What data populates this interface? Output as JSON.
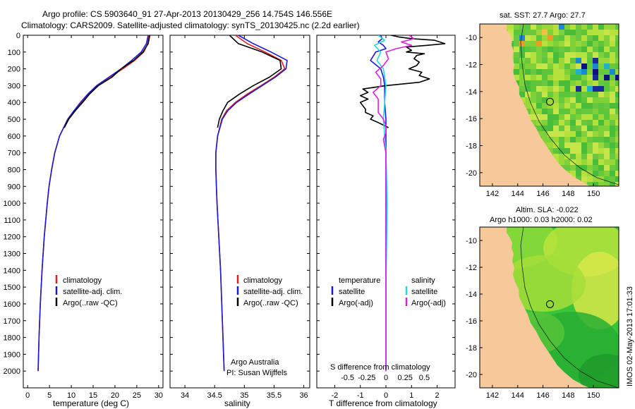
{
  "header": {
    "line1": "Argo profile: CS 5903640_91 27-Apr-2013 20130429_256 14.754S 146.556E",
    "line2": "Climatology: CARS2009. Satellite-adjusted climatology: synTS_20130425.nc (2.2d earlier)"
  },
  "colors": {
    "climatology": "#e02020",
    "satellite": "#1a1ad6",
    "argo": "#000000",
    "satellite_sal": "#22d8e8",
    "argo_sal": "#e020e0",
    "land": "#f6c89a",
    "sea": "#39c43a"
  },
  "chart_data": [
    {
      "type": "line",
      "panel": "temperature",
      "xlabel": "temperature (deg C)",
      "ylabel": "",
      "xlim": [
        -1,
        31
      ],
      "ylim": [
        2100,
        0
      ],
      "xticks": [
        0,
        5,
        10,
        15,
        20,
        25,
        30
      ],
      "yticks": [
        0,
        100,
        200,
        300,
        400,
        500,
        600,
        700,
        800,
        900,
        1000,
        1100,
        1200,
        1300,
        1400,
        1500,
        1600,
        1700,
        1800,
        1900,
        2000
      ],
      "legend": [
        "climatology",
        "satellite-adj. clim.",
        "Argo(..raw -QC)"
      ],
      "series": [
        {
          "name": "climatology",
          "color": "#e02020",
          "depth": [
            0,
            50,
            100,
            150,
            200,
            250,
            300,
            350,
            400,
            450,
            500,
            600,
            700,
            800,
            900,
            1000,
            1200,
            1400,
            1600,
            1800,
            2000
          ],
          "values": [
            27.8,
            27.5,
            26.6,
            24.5,
            21.8,
            18.8,
            16.0,
            14.0,
            12.3,
            10.7,
            9.2,
            7.3,
            6.2,
            5.5,
            4.9,
            4.5,
            3.8,
            3.3,
            2.9,
            2.6,
            2.4
          ]
        },
        {
          "name": "satellite-adj. clim.",
          "color": "#1a1ad6",
          "depth": [
            0,
            50,
            100,
            150,
            200,
            250,
            300,
            350,
            400,
            450,
            500,
            600,
            700,
            800,
            900,
            1000,
            1200,
            1400,
            1600,
            1800,
            2000
          ],
          "values": [
            27.6,
            27.2,
            26.0,
            23.8,
            21.4,
            18.6,
            15.8,
            13.8,
            12.1,
            10.6,
            9.2,
            7.3,
            6.2,
            5.5,
            4.9,
            4.5,
            3.8,
            3.3,
            2.9,
            2.6,
            2.4
          ]
        },
        {
          "name": "Argo(..raw -QC)",
          "color": "#000000",
          "depth": [
            0,
            50,
            100,
            150,
            200,
            250,
            300,
            350,
            400,
            450,
            500,
            550
          ],
          "values": [
            28.0,
            27.6,
            26.4,
            24.3,
            21.4,
            19.3,
            16.2,
            14.2,
            12.6,
            10.9,
            9.4,
            8.4
          ]
        }
      ]
    },
    {
      "type": "line",
      "panel": "salinity",
      "xlabel": "salinity",
      "ylabel": "",
      "xlim": [
        33.75,
        36.1
      ],
      "ylim": [
        2100,
        0
      ],
      "xticks": [
        34,
        34.5,
        35,
        35.5,
        36
      ],
      "legend": [
        "climatology",
        "satellite-adj. clim.",
        "Argo(..raw -QC)"
      ],
      "annotations": [
        "Argo Australia",
        "PI: Susan Wijffels"
      ],
      "series": [
        {
          "name": "climatology",
          "color": "#e02020",
          "depth": [
            0,
            50,
            100,
            150,
            200,
            250,
            300,
            350,
            400,
            450,
            500,
            600,
            700,
            800,
            900,
            1000,
            1200,
            1400,
            1600,
            1800,
            2000
          ],
          "values": [
            34.85,
            35.05,
            35.35,
            35.62,
            35.68,
            35.5,
            35.28,
            35.05,
            34.85,
            34.7,
            34.62,
            34.55,
            34.52,
            34.52,
            34.53,
            34.54,
            34.57,
            34.6,
            34.62,
            34.64,
            34.66
          ]
        },
        {
          "name": "satellite-adj. clim.",
          "color": "#1a1ad6",
          "depth": [
            0,
            50,
            100,
            150,
            200,
            250,
            300,
            350,
            400,
            450,
            500,
            600,
            700,
            800,
            900,
            1000,
            1200,
            1400,
            1600,
            1800,
            2000
          ],
          "values": [
            34.9,
            35.15,
            35.45,
            35.72,
            35.7,
            35.52,
            35.3,
            35.08,
            34.87,
            34.72,
            34.63,
            34.55,
            34.52,
            34.52,
            34.53,
            34.54,
            34.57,
            34.6,
            34.62,
            34.64,
            34.66
          ]
        },
        {
          "name": "Argo(..raw -QC)",
          "color": "#000000",
          "depth": [
            0,
            50,
            100,
            150,
            200,
            250,
            300,
            350,
            400,
            450,
            500,
            550
          ],
          "values": [
            34.75,
            34.9,
            35.3,
            35.6,
            35.62,
            35.42,
            35.15,
            34.92,
            34.72,
            34.64,
            34.58,
            34.55
          ]
        }
      ]
    },
    {
      "type": "line",
      "panel": "difference",
      "xlabel": "T difference from climatology",
      "x2label": "S difference from climatology",
      "xlim": [
        -2.7,
        2.7
      ],
      "ylim": [
        2100,
        0
      ],
      "xticks": [
        -2,
        -1,
        0,
        1,
        2
      ],
      "x2ticks": [
        "-0.5",
        "-0.25",
        "0",
        "0.25",
        "0.5"
      ],
      "legend_titles": [
        "temperature",
        "salinity"
      ],
      "legend": [
        "satellite",
        "Argo(-adj)",
        "satellite",
        "Argo(-adj)"
      ],
      "series": [
        {
          "name": "satellite",
          "color": "#1a1ad6",
          "depth": [
            0,
            20,
            40,
            60,
            80,
            100,
            150,
            200,
            250,
            300,
            400,
            500,
            700,
            1000,
            1500,
            2000
          ],
          "values": [
            -0.2,
            -0.15,
            -0.3,
            -0.1,
            0.0,
            -0.4,
            -0.6,
            -0.2,
            -0.1,
            -0.05,
            -0.05,
            0.0,
            0.0,
            0.0,
            0.0,
            0.0
          ]
        },
        {
          "name": "Argo(-adj)",
          "color": "#000000",
          "depth": [
            0,
            10,
            20,
            30,
            50,
            60,
            70,
            90,
            100,
            110,
            120,
            140,
            160,
            180,
            200,
            220,
            240,
            260,
            280,
            300,
            320,
            340,
            360,
            380,
            400,
            420,
            440,
            460,
            480,
            500,
            520,
            550
          ],
          "values": [
            0.2,
            0.5,
            1.0,
            1.9,
            2.3,
            1.6,
            0.8,
            1.0,
            0.8,
            1.5,
            1.2,
            1.1,
            1.3,
            1.2,
            0.9,
            1.4,
            1.3,
            1.7,
            1.3,
            0.0,
            -0.9,
            -0.7,
            -1.0,
            -0.7,
            -1.0,
            -0.9,
            -0.8,
            -0.8,
            -0.5,
            -0.6,
            -0.3,
            0.1
          ]
        },
        {
          "name": "satellite",
          "color": "#22d8e8",
          "depth": [
            0,
            30,
            60,
            100,
            150,
            200,
            300,
            500,
            700,
            1000,
            1500,
            2000
          ],
          "values": [
            -0.3,
            -0.05,
            -0.45,
            -0.2,
            -0.35,
            -0.1,
            0.0,
            -0.1,
            0.0,
            0.05,
            0.0,
            0.0
          ]
        },
        {
          "name": "Argo(-adj)",
          "color": "#e020e0",
          "depth": [
            0,
            20,
            40,
            60,
            80,
            100,
            140,
            180,
            220,
            260,
            300,
            340,
            380,
            420,
            460,
            500,
            540,
            580,
            620,
            700,
            800,
            1000,
            1500,
            2000
          ],
          "values": [
            0.9,
            1.1,
            0.6,
            1.0,
            0.4,
            0.0,
            0.1,
            -0.1,
            -0.4,
            -0.2,
            -0.2,
            -0.5,
            -0.3,
            -0.3,
            -0.3,
            -0.1,
            0.0,
            0.0,
            -0.1,
            0.0,
            0.0,
            0.0,
            0.0,
            0.0
          ]
        }
      ]
    },
    {
      "type": "heatmap",
      "panel": "sst-map",
      "title": "sat. SST: 27.7 Argo: 27.7",
      "xticks": [
        142,
        144,
        146,
        148,
        150
      ],
      "yticks": [
        -10,
        -12,
        -14,
        -16,
        -18,
        -20
      ],
      "xlim": [
        141,
        152
      ],
      "ylim": [
        -21,
        -9
      ],
      "marker": {
        "lon": 146.556,
        "lat": -14.754
      }
    },
    {
      "type": "heatmap",
      "panel": "sla-map",
      "title": "Altim. SLA: -0.022",
      "title2": "Argo h1000: 0.03 h2000: 0.02",
      "xticks": [
        142,
        144,
        146,
        148,
        150
      ],
      "yticks": [
        -10,
        -12,
        -14,
        -16,
        -18,
        -20
      ],
      "xlim": [
        141,
        152
      ],
      "ylim": [
        -21,
        -9
      ],
      "marker": {
        "lon": 146.556,
        "lat": -14.754
      }
    }
  ],
  "footer": {
    "stamp": "IMOS 02-May-2013 17:01:33"
  }
}
